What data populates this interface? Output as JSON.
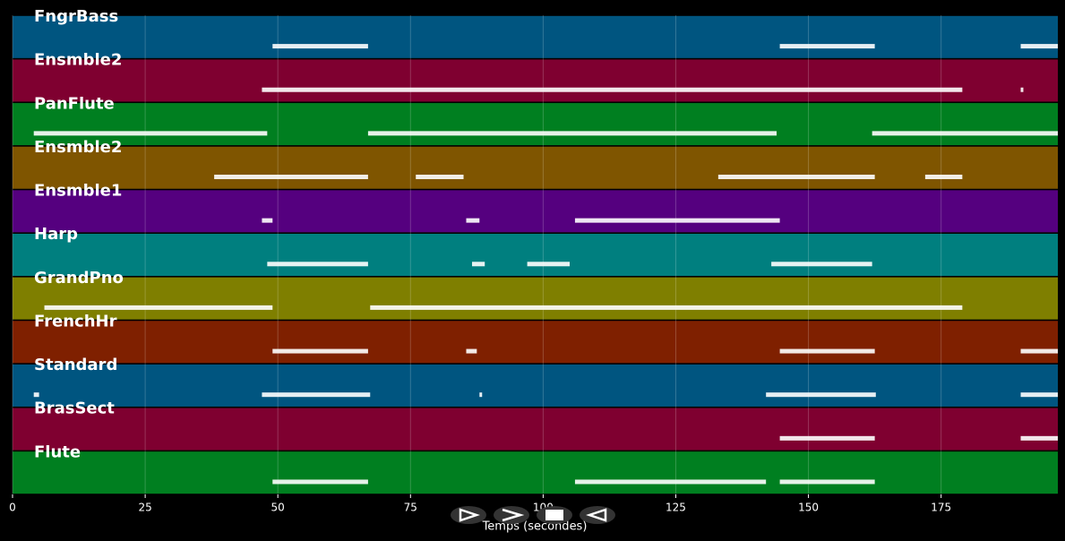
{
  "chart_data": {
    "type": "piano_roll",
    "xlabel": "Temps (secondes)",
    "xlim": [
      0,
      197
    ],
    "xticks": [
      0,
      25,
      50,
      75,
      100,
      125,
      150,
      175
    ],
    "grid": true,
    "tracks": [
      {
        "name": "FngrBass",
        "color": "#005580",
        "segments": [
          [
            49,
            67
          ],
          [
            144.6,
            162.5
          ],
          [
            190,
            197
          ]
        ]
      },
      {
        "name": "Ensmble2",
        "color": "#7f0030",
        "segments": [
          [
            47,
            179
          ],
          [
            190,
            190.5
          ]
        ]
      },
      {
        "name": "PanFlute",
        "color": "#007f20",
        "segments": [
          [
            4,
            48
          ],
          [
            67,
            144
          ],
          [
            162,
            197
          ]
        ]
      },
      {
        "name": "Ensmble2",
        "color": "#7f5500",
        "segments": [
          [
            38,
            67
          ],
          [
            76,
            85
          ],
          [
            133,
            162.5
          ],
          [
            172,
            179
          ]
        ]
      },
      {
        "name": "Ensmble1",
        "color": "#55007f",
        "segments": [
          [
            47,
            49
          ],
          [
            85.5,
            88
          ],
          [
            106,
            144.6
          ]
        ]
      },
      {
        "name": "Harp",
        "color": "#007f7f",
        "segments": [
          [
            48,
            67
          ],
          [
            86.6,
            89
          ],
          [
            97,
            105
          ],
          [
            143,
            162
          ]
        ]
      },
      {
        "name": "GrandPno",
        "color": "#7f7f00",
        "segments": [
          [
            6,
            49
          ],
          [
            67.4,
            179
          ]
        ]
      },
      {
        "name": "FrenchHr",
        "color": "#7f2000",
        "segments": [
          [
            49,
            67
          ],
          [
            85.5,
            87.5
          ],
          [
            144.6,
            162.5
          ],
          [
            190,
            197
          ]
        ]
      },
      {
        "name": "Standard",
        "color": "#005580",
        "segments": [
          [
            4,
            5
          ],
          [
            47,
            67.4
          ],
          [
            88,
            88.5
          ],
          [
            142,
            162.7
          ],
          [
            190,
            197
          ]
        ]
      },
      {
        "name": "BrasSect",
        "color": "#7f0030",
        "segments": [
          [
            144.6,
            162.5
          ],
          [
            190,
            197
          ]
        ]
      },
      {
        "name": "Flute",
        "color": "#007f20",
        "segments": [
          [
            49,
            67
          ],
          [
            106,
            142
          ],
          [
            144.6,
            162.5
          ]
        ]
      }
    ]
  }
}
